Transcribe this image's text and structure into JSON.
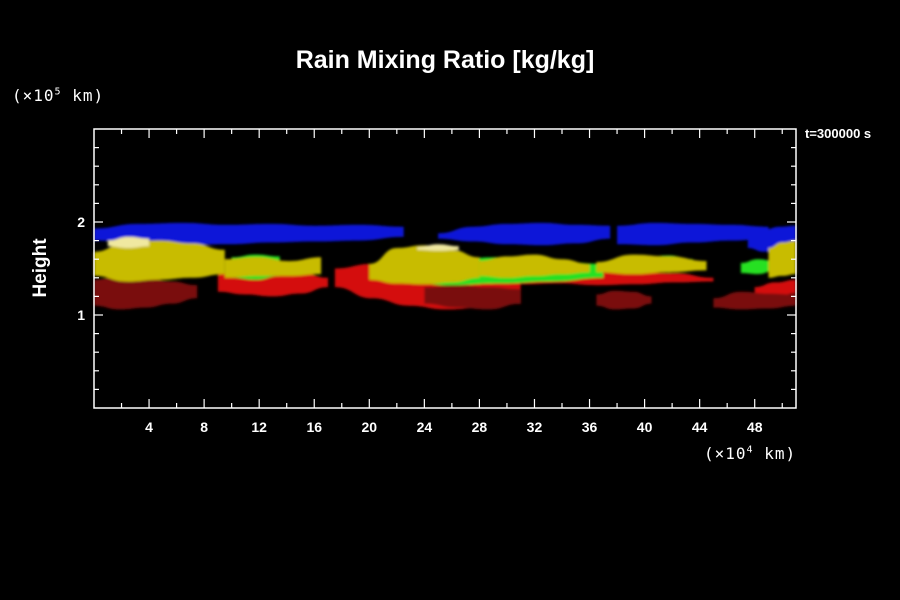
{
  "chart_data": {
    "type": "heatmap",
    "title": "Rain Mixing Ratio [kg/kg]",
    "ylabel": "Height",
    "y_unit": {
      "prefix": "(×10",
      "exp": "5",
      "suffix": " km)"
    },
    "x_unit": {
      "prefix": "(×10",
      "exp": "4",
      "suffix": " km)"
    },
    "time_label": "t=300000 s",
    "xlim": [
      0,
      51
    ],
    "ylim": [
      0,
      3
    ],
    "x_ticks": [
      4,
      8,
      12,
      16,
      20,
      24,
      28,
      32,
      36,
      40,
      44,
      48
    ],
    "y_ticks": [
      1,
      2
    ],
    "layers": [
      {
        "color": "#0a14d8",
        "segments": [
          {
            "x0": 0.0,
            "x1": 22.5,
            "top": [
              1.93,
              1.98,
              1.99,
              1.97,
              1.98,
              1.96,
              1.97,
              1.95
            ],
            "bottom": [
              1.8,
              1.78,
              1.75,
              1.76,
              1.78,
              1.79,
              1.8,
              1.84
            ]
          },
          {
            "x0": 25.0,
            "x1": 37.5,
            "top": [
              1.88,
              1.95,
              1.98,
              1.99,
              1.97,
              1.96
            ],
            "bottom": [
              1.82,
              1.79,
              1.76,
              1.75,
              1.77,
              1.82
            ]
          },
          {
            "x0": 38.0,
            "x1": 49.0,
            "top": [
              1.96,
              1.99,
              1.98,
              1.97,
              1.95
            ],
            "bottom": [
              1.76,
              1.75,
              1.78,
              1.8,
              1.82
            ]
          },
          {
            "x0": 47.5,
            "x1": 51.0,
            "top": [
              1.85,
              1.92,
              1.95,
              1.96
            ],
            "bottom": [
              1.72,
              1.68,
              1.7,
              1.75
            ]
          }
        ]
      },
      {
        "color": "#d41010",
        "segments": [
          {
            "x0": 9.0,
            "x1": 17.0,
            "top": [
              1.45,
              1.48,
              1.5,
              1.46,
              1.4
            ],
            "bottom": [
              1.25,
              1.22,
              1.2,
              1.23,
              1.3
            ]
          },
          {
            "x0": 17.5,
            "x1": 31.0,
            "top": [
              1.5,
              1.55,
              1.53,
              1.5,
              1.48,
              1.45
            ],
            "bottom": [
              1.3,
              1.18,
              1.1,
              1.06,
              1.08,
              1.12
            ]
          },
          {
            "x0": 31.0,
            "x1": 45.0,
            "top": [
              1.5,
              1.47,
              1.48,
              1.46,
              1.45,
              1.4
            ],
            "bottom": [
              1.33,
              1.34,
              1.32,
              1.33,
              1.35,
              1.36
            ]
          },
          {
            "x0": 48.0,
            "x1": 51.0,
            "top": [
              1.3,
              1.35,
              1.38
            ],
            "bottom": [
              1.22,
              1.2,
              1.23
            ]
          }
        ]
      },
      {
        "color": "#7a0c0c",
        "segments": [
          {
            "x0": 0.0,
            "x1": 7.5,
            "top": [
              1.38,
              1.42,
              1.4,
              1.36,
              1.32
            ],
            "bottom": [
              1.1,
              1.06,
              1.08,
              1.12,
              1.18
            ]
          },
          {
            "x0": 24.0,
            "x1": 31.0,
            "top": [
              1.3,
              1.32,
              1.3,
              1.28
            ],
            "bottom": [
              1.12,
              1.08,
              1.06,
              1.12
            ]
          },
          {
            "x0": 36.5,
            "x1": 40.5,
            "top": [
              1.22,
              1.26,
              1.25,
              1.2
            ],
            "bottom": [
              1.1,
              1.06,
              1.07,
              1.12
            ]
          },
          {
            "x0": 45.0,
            "x1": 51.0,
            "top": [
              1.18,
              1.25,
              1.23,
              1.22
            ],
            "bottom": [
              1.08,
              1.06,
              1.07,
              1.1
            ]
          }
        ]
      },
      {
        "color": "#28e020",
        "segments": [
          {
            "x0": 10.0,
            "x1": 13.5,
            "top": [
              1.62,
              1.65,
              1.63
            ],
            "bottom": [
              1.4,
              1.38,
              1.42
            ]
          },
          {
            "x0": 22.0,
            "x1": 37.0,
            "top": [
              1.56,
              1.6,
              1.62,
              1.58,
              1.55
            ],
            "bottom": [
              1.38,
              1.32,
              1.34,
              1.36,
              1.4
            ]
          },
          {
            "x0": 40.0,
            "x1": 43.5,
            "top": [
              1.62,
              1.64,
              1.6
            ],
            "bottom": [
              1.48,
              1.46,
              1.5
            ]
          },
          {
            "x0": 47.0,
            "x1": 49.5,
            "top": [
              1.56,
              1.6,
              1.58
            ],
            "bottom": [
              1.45,
              1.44,
              1.48
            ]
          }
        ]
      },
      {
        "color": "#c8bc00",
        "segments": [
          {
            "x0": 0.0,
            "x1": 9.5,
            "top": [
              1.68,
              1.78,
              1.8,
              1.77,
              1.7
            ],
            "bottom": [
              1.42,
              1.36,
              1.38,
              1.4,
              1.44
            ]
          },
          {
            "x0": 9.5,
            "x1": 16.5,
            "top": [
              1.6,
              1.62,
              1.58,
              1.62
            ],
            "bottom": [
              1.4,
              1.42,
              1.42,
              1.44
            ]
          },
          {
            "x0": 20.0,
            "x1": 28.0,
            "top": [
              1.55,
              1.72,
              1.75,
              1.7,
              1.62
            ],
            "bottom": [
              1.38,
              1.34,
              1.33,
              1.35,
              1.4
            ]
          },
          {
            "x0": 28.0,
            "x1": 36.0,
            "top": [
              1.58,
              1.63,
              1.65,
              1.6,
              1.55
            ],
            "bottom": [
              1.42,
              1.4,
              1.42,
              1.44,
              1.46
            ]
          },
          {
            "x0": 36.5,
            "x1": 44.5,
            "top": [
              1.57,
              1.65,
              1.63,
              1.58
            ],
            "bottom": [
              1.46,
              1.44,
              1.46,
              1.48
            ]
          },
          {
            "x0": 49.0,
            "x1": 51.0,
            "top": [
              1.72,
              1.78,
              1.8
            ],
            "bottom": [
              1.4,
              1.42,
              1.44
            ]
          }
        ]
      },
      {
        "color": "#f0e8a0",
        "segments": [
          {
            "x0": 1.0,
            "x1": 4.0,
            "top": [
              1.8,
              1.84,
              1.82
            ],
            "bottom": [
              1.74,
              1.72,
              1.74
            ]
          },
          {
            "x0": 23.5,
            "x1": 26.5,
            "top": [
              1.73,
              1.76,
              1.74
            ],
            "bottom": [
              1.7,
              1.69,
              1.7
            ]
          }
        ]
      }
    ]
  }
}
